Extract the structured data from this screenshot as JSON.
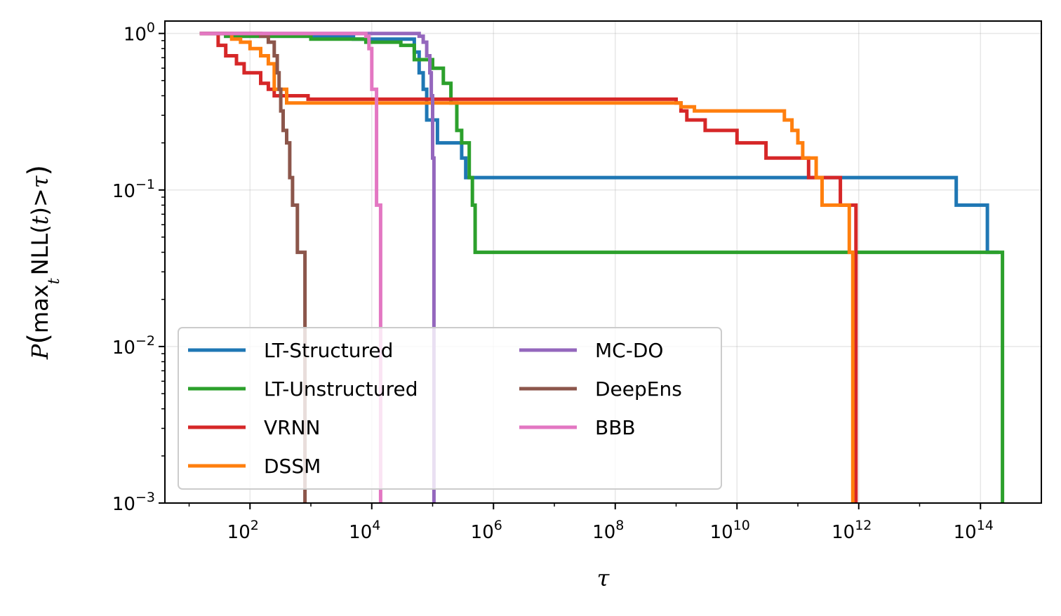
{
  "chart_data": {
    "type": "line",
    "step": true,
    "xscale": "log",
    "yscale": "log",
    "xlim": [
      4,
      1000000000000000.0
    ],
    "ylim": [
      0.001,
      1.2
    ],
    "xlabel": "τ",
    "ylabel": "P(max_t NLL(t) > τ)",
    "ylabel_parts": {
      "P": "P",
      "max": "max",
      "sub": "t",
      "body": "NLL(",
      "t": "t",
      "close": ")>",
      "tau": "τ"
    },
    "xticks": [
      {
        "base": "10",
        "exp": "2",
        "value": 100
      },
      {
        "base": "10",
        "exp": "4",
        "value": 10000
      },
      {
        "base": "10",
        "exp": "6",
        "value": 1000000
      },
      {
        "base": "10",
        "exp": "8",
        "value": 100000000
      },
      {
        "base": "10",
        "exp": "10",
        "value": 10000000000
      },
      {
        "base": "10",
        "exp": "12",
        "value": 1000000000000
      },
      {
        "base": "10",
        "exp": "14",
        "value": 100000000000000
      }
    ],
    "yticks": [
      {
        "base": "10",
        "exp": "0",
        "value": 1
      },
      {
        "base": "10",
        "exp": "−1",
        "value": 0.1
      },
      {
        "base": "10",
        "exp": "−2",
        "value": 0.01
      },
      {
        "base": "10",
        "exp": "−3",
        "value": 0.001
      }
    ],
    "grid": true,
    "legend_position": "lower-left",
    "legend_columns": 2,
    "series": [
      {
        "name": "LT-Structured",
        "color": "#1f77b4",
        "points": [
          [
            15,
            1
          ],
          [
            40,
            0.96
          ],
          [
            100,
            0.96
          ],
          [
            200,
            0.96
          ],
          [
            1000,
            0.96
          ],
          [
            5000,
            0.92
          ],
          [
            30000,
            0.92
          ],
          [
            50000,
            0.76
          ],
          [
            60000,
            0.56
          ],
          [
            70000,
            0.44
          ],
          [
            80000,
            0.28
          ],
          [
            120000,
            0.2
          ],
          [
            300000,
            0.16
          ],
          [
            350000,
            0.12
          ],
          [
            100000000000.0,
            0.12
          ],
          [
            30000000000000.0,
            0.12
          ],
          [
            40000000000000.0,
            0.08
          ],
          [
            120000000000000.0,
            0.08
          ],
          [
            130000000000000.0,
            0.04
          ],
          [
            200000000000000.0,
            0.04
          ]
        ]
      },
      {
        "name": "LT-Unstructured",
        "color": "#2ca02c",
        "points": [
          [
            15,
            1
          ],
          [
            40,
            0.96
          ],
          [
            100,
            0.96
          ],
          [
            500,
            0.96
          ],
          [
            1000,
            0.92
          ],
          [
            3000,
            0.92
          ],
          [
            8000,
            0.88
          ],
          [
            30000,
            0.84
          ],
          [
            50000,
            0.68
          ],
          [
            100000,
            0.6
          ],
          [
            150000,
            0.48
          ],
          [
            200000,
            0.36
          ],
          [
            250000,
            0.24
          ],
          [
            300000,
            0.2
          ],
          [
            400000,
            0.12
          ],
          [
            450000,
            0.08
          ],
          [
            500000,
            0.04
          ],
          [
            200000000000000.0,
            0.04
          ],
          [
            230000000000000.0,
            0.001
          ]
        ]
      },
      {
        "name": "VRNN",
        "color": "#d62728",
        "points": [
          [
            15,
            1
          ],
          [
            30,
            0.84
          ],
          [
            40,
            0.72
          ],
          [
            60,
            0.64
          ],
          [
            80,
            0.56
          ],
          [
            150,
            0.48
          ],
          [
            200,
            0.44
          ],
          [
            250,
            0.4
          ],
          [
            900,
            0.38
          ],
          [
            1000000000.0,
            0.36
          ],
          [
            1200000000.0,
            0.32
          ],
          [
            1500000000.0,
            0.28
          ],
          [
            3000000000.0,
            0.24
          ],
          [
            10000000000.0,
            0.2
          ],
          [
            30000000000.0,
            0.16
          ],
          [
            150000000000.0,
            0.12
          ],
          [
            500000000000.0,
            0.08
          ],
          [
            900000000000.0,
            0.001
          ]
        ]
      },
      {
        "name": "DSSM",
        "color": "#ff7f0e",
        "points": [
          [
            15,
            1
          ],
          [
            50,
            0.92
          ],
          [
            70,
            0.88
          ],
          [
            100,
            0.8
          ],
          [
            150,
            0.72
          ],
          [
            200,
            0.64
          ],
          [
            250,
            0.44
          ],
          [
            400,
            0.36
          ],
          [
            1200000000.0,
            0.34
          ],
          [
            2000000000.0,
            0.32
          ],
          [
            60000000000.0,
            0.28
          ],
          [
            80000000000.0,
            0.24
          ],
          [
            100000000000.0,
            0.2
          ],
          [
            120000000000.0,
            0.16
          ],
          [
            200000000000.0,
            0.12
          ],
          [
            250000000000.0,
            0.08
          ],
          [
            700000000000.0,
            0.04
          ],
          [
            800000000000.0,
            0.001
          ]
        ]
      },
      {
        "name": "MC-DO",
        "color": "#9467bd",
        "points": [
          [
            15,
            1
          ],
          [
            1000,
            1
          ],
          [
            3000,
            1
          ],
          [
            5000,
            1
          ],
          [
            60000,
            0.96
          ],
          [
            70000,
            0.88
          ],
          [
            80000,
            0.72
          ],
          [
            90000,
            0.56
          ],
          [
            95000,
            0.4
          ],
          [
            100000,
            0.16
          ],
          [
            105000,
            0.001
          ]
        ]
      },
      {
        "name": "DeepEns",
        "color": "#8c564b",
        "points": [
          [
            15,
            1
          ],
          [
            150,
            0.96
          ],
          [
            200,
            0.88
          ],
          [
            250,
            0.72
          ],
          [
            280,
            0.56
          ],
          [
            300,
            0.44
          ],
          [
            320,
            0.32
          ],
          [
            350,
            0.24
          ],
          [
            400,
            0.2
          ],
          [
            450,
            0.12
          ],
          [
            500,
            0.08
          ],
          [
            600,
            0.04
          ],
          [
            700,
            0.04
          ],
          [
            800,
            0.001
          ]
        ]
      },
      {
        "name": "BBB",
        "color": "#e377c2",
        "points": [
          [
            15,
            1
          ],
          [
            5000,
            1
          ],
          [
            8000,
            0.96
          ],
          [
            9000,
            0.8
          ],
          [
            10000,
            0.44
          ],
          [
            12000,
            0.08
          ],
          [
            14000,
            0.001
          ]
        ]
      }
    ]
  }
}
